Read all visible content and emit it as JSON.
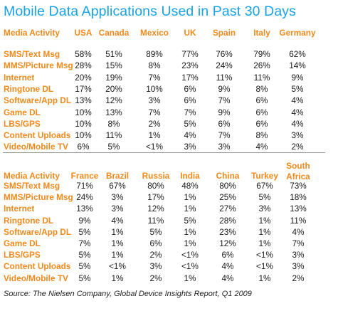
{
  "chart_data": {
    "type": "table",
    "title": "Mobile Data Applications Used in Past 30 Days",
    "source": "Source: The Nielsen Company, Global Device Insights Report, Q1 2009",
    "tables": [
      {
        "corner": "Media  Activity",
        "columns": [
          "USA",
          "Canada",
          "Mexico",
          "UK",
          "Spain",
          "Italy",
          "Germany"
        ],
        "rows": [
          {
            "label": "SMS/Text Msg",
            "values": [
              "58%",
              "51%",
              "89%",
              "77%",
              "76%",
              "79%",
              "62%"
            ]
          },
          {
            "label": "MMS/Picture Msg",
            "values": [
              "28%",
              "15%",
              "8%",
              "23%",
              "24%",
              "26%",
              "14%"
            ]
          },
          {
            "label": "Internet",
            "values": [
              "20%",
              "19%",
              "7%",
              "17%",
              "11%",
              "11%",
              "9%"
            ]
          },
          {
            "label": "Ringtone DL",
            "values": [
              "17%",
              "20%",
              "10%",
              "6%",
              "9%",
              "8%",
              "5%"
            ]
          },
          {
            "label": "Software/App DL",
            "values": [
              "13%",
              "12%",
              "3%",
              "6%",
              "7%",
              "6%",
              "4%"
            ]
          },
          {
            "label": "Game DL",
            "values": [
              "10%",
              "13%",
              "7%",
              "7%",
              "9%",
              "6%",
              "4%"
            ]
          },
          {
            "label": "LBS/GPS",
            "values": [
              "10%",
              "8%",
              "2%",
              "5%",
              "6%",
              "6%",
              "4%"
            ]
          },
          {
            "label": "Content Uploads",
            "values": [
              "10%",
              "11%",
              "1%",
              "4%",
              "7%",
              "8%",
              "3%"
            ]
          },
          {
            "label": "Video/Mobile TV",
            "values": [
              "6%",
              "5%",
              "<1%",
              "3%",
              "3%",
              "4%",
              "2%"
            ]
          }
        ]
      },
      {
        "corner": "Media Activity",
        "columns": [
          "France",
          "Brazil",
          "Russia",
          "India",
          "China",
          "Turkey",
          "South Africa"
        ],
        "rows": [
          {
            "label": "SMS/Text Msg",
            "values": [
              "71%",
              "67%",
              "80%",
              "48%",
              "80%",
              "67%",
              "73%"
            ]
          },
          {
            "label": "MMS/Picture Msg",
            "values": [
              "24%",
              "3%",
              "17%",
              "1%",
              "25%",
              "5%",
              "18%"
            ]
          },
          {
            "label": "Internet",
            "values": [
              "13%",
              "3%",
              "12%",
              "1%",
              "27%",
              "3%",
              "13%"
            ]
          },
          {
            "label": "Ringtone DL",
            "values": [
              "9%",
              "4%",
              "11%",
              "5%",
              "28%",
              "1%",
              "11%"
            ]
          },
          {
            "label": "Software/App DL",
            "values": [
              "5%",
              "1%",
              "5%",
              "1%",
              "23%",
              "1%",
              "4%"
            ]
          },
          {
            "label": "Game DL",
            "values": [
              "7%",
              "1%",
              "6%",
              "1%",
              "12%",
              "1%",
              "7%"
            ]
          },
          {
            "label": "LBS/GPS",
            "values": [
              "5%",
              "1%",
              "2%",
              "<1%",
              "6%",
              "<1%",
              "3%"
            ]
          },
          {
            "label": "Content Uploads",
            "values": [
              "5%",
              "<1%",
              "3%",
              "<1%",
              "4%",
              "<1%",
              "3%"
            ]
          },
          {
            "label": "Video/Mobile TV",
            "values": [
              "5%",
              "1%",
              "2%",
              "1%",
              "4%",
              "1%",
              "2%"
            ]
          }
        ]
      }
    ]
  },
  "colors": {
    "title": "#1aa3e2",
    "label": "#f08a1c",
    "value": "#1a1a1a",
    "separator": "#9a9a9a"
  }
}
